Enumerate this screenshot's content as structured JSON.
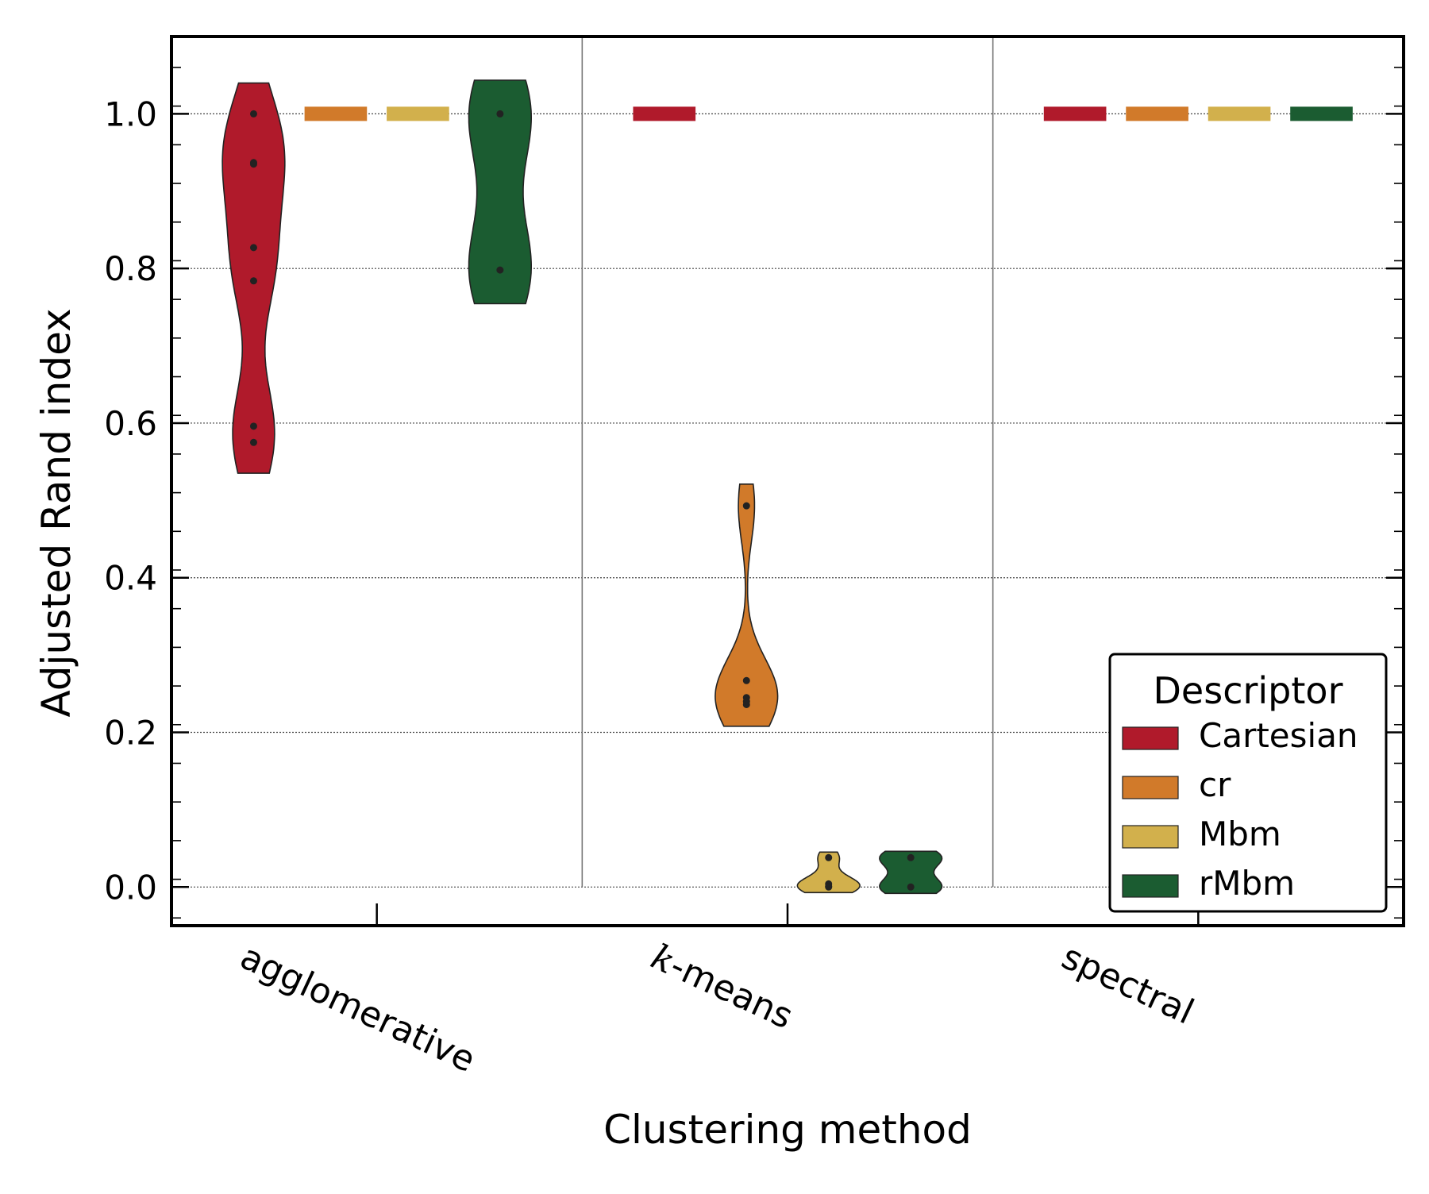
{
  "chart_data": {
    "type": "violin",
    "title": "",
    "xlabel": "Clustering method",
    "ylabel": "Adjusted Rand index",
    "ylim": [
      -0.05,
      1.1
    ],
    "yticks": [
      "0.0",
      "0.2",
      "0.4",
      "0.6",
      "0.8",
      "1.0"
    ],
    "ytick_values": [
      0.0,
      0.2,
      0.4,
      0.6,
      0.8,
      1.0
    ],
    "grid": "horizontal dotted",
    "categories": [
      "agglomerative",
      "k-means",
      "spectral"
    ],
    "legend": {
      "title": "Descriptor",
      "placement": "lower right",
      "entries": [
        "Cartesian",
        "cr",
        "Mbm",
        "rMbm"
      ]
    },
    "series": [
      {
        "name": "Cartesian",
        "color": "#b01a2b",
        "values": {
          "agglomerative": [
            1.0,
            0.937,
            0.935,
            0.827,
            0.784,
            0.596,
            0.575
          ],
          "k-means": [
            1.0,
            1.0,
            1.0
          ],
          "spectral": [
            1.0,
            1.0,
            1.0
          ]
        }
      },
      {
        "name": "cr",
        "color": "#d17a2a",
        "values": {
          "agglomerative": [
            1.0,
            1.0,
            1.0
          ],
          "k-means": [
            0.493,
            0.267,
            0.245,
            0.24,
            0.236
          ],
          "spectral": [
            1.0,
            1.0,
            1.0
          ]
        }
      },
      {
        "name": "Mbm",
        "color": "#d2b04c",
        "values": {
          "agglomerative": [
            1.0,
            1.0,
            1.0
          ],
          "k-means": [
            0.038,
            0.004,
            0.001,
            0.0
          ],
          "spectral": [
            1.0,
            1.0,
            1.0
          ]
        }
      },
      {
        "name": "rMbm",
        "color": "#1b5c31",
        "values": {
          "agglomerative": [
            1.0,
            0.798
          ],
          "k-means": [
            0.038,
            0.0
          ],
          "spectral": [
            1.0,
            1.0,
            1.0
          ]
        }
      }
    ]
  }
}
